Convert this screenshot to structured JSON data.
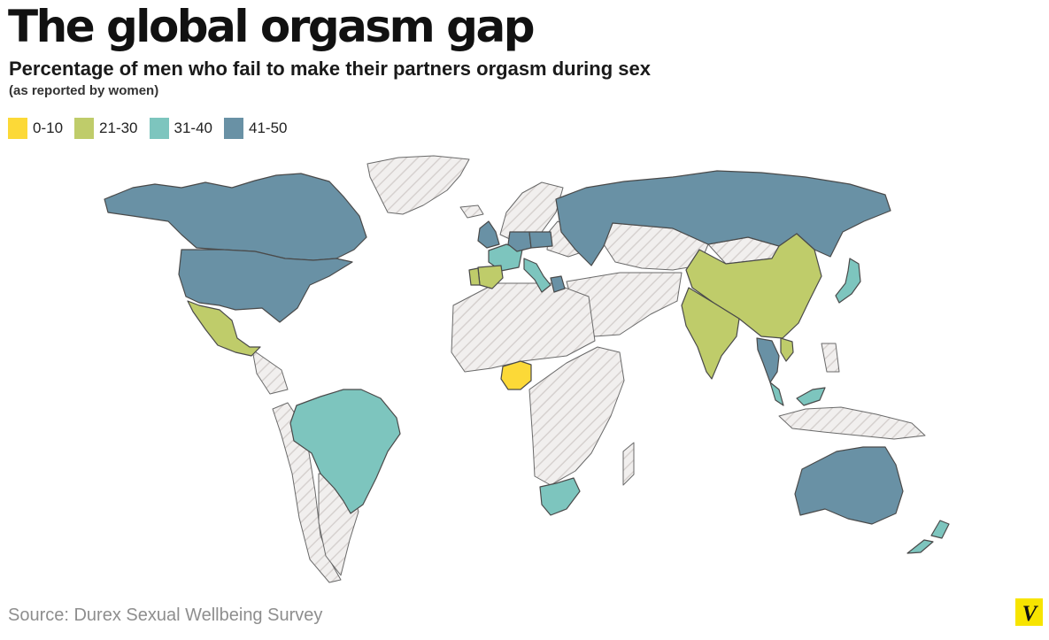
{
  "title": "The global orgasm gap",
  "subtitle": "Percentage of men who fail to make their partners orgasm during sex",
  "note": "(as reported by women)",
  "legend": [
    {
      "label": "0-10",
      "color": "#fcd937"
    },
    {
      "label": "21-30",
      "color": "#bfcc6a"
    },
    {
      "label": "31-40",
      "color": "#7dc5be"
    },
    {
      "label": "41-50",
      "color": "#6991a5"
    }
  ],
  "no_data_style": "white with grey diagonal hatching",
  "border_color": "#4a4a4a",
  "countries": [
    {
      "name": "Canada",
      "bin": "41-50"
    },
    {
      "name": "United States",
      "bin": "41-50"
    },
    {
      "name": "Mexico",
      "bin": "21-30"
    },
    {
      "name": "Brazil",
      "bin": "31-40"
    },
    {
      "name": "United Kingdom",
      "bin": "41-50"
    },
    {
      "name": "France",
      "bin": "31-40"
    },
    {
      "name": "Spain",
      "bin": "21-30"
    },
    {
      "name": "Portugal",
      "bin": "21-30"
    },
    {
      "name": "Italy",
      "bin": "31-40"
    },
    {
      "name": "Germany",
      "bin": "41-50"
    },
    {
      "name": "Poland",
      "bin": "41-50"
    },
    {
      "name": "Greece",
      "bin": "41-50"
    },
    {
      "name": "Russia",
      "bin": "41-50"
    },
    {
      "name": "China",
      "bin": "21-30"
    },
    {
      "name": "India",
      "bin": "21-30"
    },
    {
      "name": "Thailand",
      "bin": "41-50"
    },
    {
      "name": "Vietnam",
      "bin": "21-30"
    },
    {
      "name": "Malaysia",
      "bin": "31-40"
    },
    {
      "name": "Japan",
      "bin": "31-40"
    },
    {
      "name": "Nigeria",
      "bin": "0-10"
    },
    {
      "name": "South Africa",
      "bin": "31-40"
    },
    {
      "name": "Australia",
      "bin": "41-50"
    },
    {
      "name": "New Zealand",
      "bin": "31-40"
    }
  ],
  "source": "Source: Durex Sexual Wellbeing Survey",
  "logo_letter": "V"
}
